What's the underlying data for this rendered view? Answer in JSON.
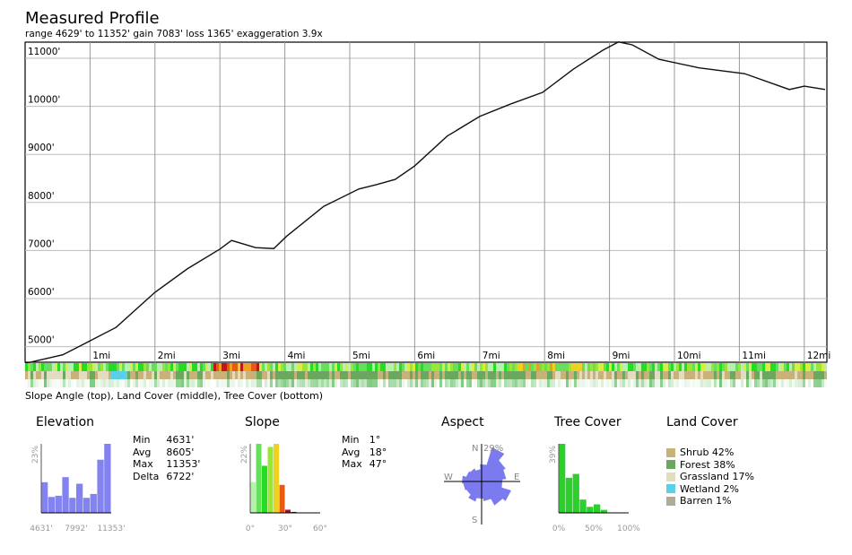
{
  "title": "Measured Profile",
  "subtitle": "range 4629' to 11352'  gain 7083'  loss 1365'  exaggeration 3.9x",
  "strip_caption": "Slope Angle (top), Land Cover (middle), Tree Cover (bottom)",
  "chart_data": [
    {
      "type": "line",
      "name": "elevation-profile",
      "ylim": [
        4629,
        11352
      ],
      "xlim": [
        0,
        12.35
      ],
      "y_ticks": [
        "5000'",
        "6000'",
        "7000'",
        "8000'",
        "9000'",
        "10000'",
        "11000'"
      ],
      "x_ticks": [
        "1mi",
        "2mi",
        "3mi",
        "4mi",
        "5mi",
        "6mi",
        "7mi",
        "8mi",
        "9mi",
        "10mi",
        "11mi",
        "12mi"
      ],
      "grid": true,
      "x": [
        0,
        0.58,
        1.0,
        1.4,
        2.0,
        2.5,
        3.0,
        3.18,
        3.55,
        3.83,
        4.03,
        4.6,
        5.14,
        5.41,
        5.7,
        6.0,
        6.5,
        7.0,
        7.48,
        7.97,
        8.45,
        8.9,
        9.14,
        9.35,
        9.76,
        10.38,
        11.08,
        11.77,
        12.0,
        12.32
      ],
      "y": [
        4650,
        4830,
        5120,
        5400,
        6130,
        6620,
        7030,
        7210,
        7060,
        7040,
        7300,
        7920,
        8280,
        8370,
        8480,
        8760,
        9380,
        9790,
        10050,
        10290,
        10780,
        11170,
        11340,
        11280,
        10980,
        10800,
        10680,
        10350,
        10420,
        10350
      ]
    },
    {
      "type": "bar",
      "title": "Elevation",
      "max_label": "23%",
      "ymax": 23,
      "tick_labels": [
        "4631'",
        "7992'",
        "11353'"
      ],
      "values": [
        10.2,
        5.3,
        5.7,
        11.9,
        5,
        9.7,
        5,
        6.3,
        17.7,
        23
      ],
      "color": "#7b7bef",
      "stats": [
        [
          "Min",
          "4631'"
        ],
        [
          "Avg",
          "8605'"
        ],
        [
          "Max",
          "11353'"
        ],
        [
          "Delta",
          "6722'"
        ]
      ]
    },
    {
      "type": "bar",
      "title": "Slope",
      "max_label": "22%",
      "ymax": 22,
      "tick_labels": [
        "0°",
        "30°",
        "60°"
      ],
      "values": [
        9.8,
        22,
        15,
        21,
        22,
        8.9,
        1,
        0.3,
        0,
        0,
        0,
        0
      ],
      "colors": [
        "#b8f0b0",
        "#66e05a",
        "#22dd22",
        "#99e633",
        "#f0d020",
        "#e85a10",
        "#a01020",
        "#401020",
        "#000",
        "#000",
        "#000",
        "#000"
      ],
      "stats": [
        [
          "Min",
          "1°"
        ],
        [
          "Avg",
          "18°"
        ],
        [
          "Max",
          "47°"
        ]
      ]
    },
    {
      "type": "rose",
      "title": "Aspect",
      "max_label": "29%",
      "directions": [
        "N",
        "E",
        "S",
        "W"
      ],
      "color": "#7b7bef",
      "values": [
        14,
        29,
        22,
        20,
        17,
        25,
        22,
        16,
        14,
        17,
        14,
        15,
        16,
        13,
        12,
        10
      ]
    },
    {
      "type": "bar",
      "title": "Tree Cover",
      "max_label": "39%",
      "ymax": 39,
      "tick_labels": [
        "0%",
        "50%",
        "100%"
      ],
      "values": [
        39,
        19.8,
        22,
        7.5,
        3.4,
        4.8,
        1.7,
        0,
        0,
        0
      ],
      "color": "#22cc22"
    },
    {
      "type": "legend",
      "title": "Land Cover",
      "items": [
        {
          "label": "Shrub 42%",
          "color": "#c8b27a"
        },
        {
          "label": "Forest 38%",
          "color": "#6aa860"
        },
        {
          "label": "Grassland 17%",
          "color": "#e2dcc0"
        },
        {
          "label": "Wetland 2%",
          "color": "#5ad0e8"
        },
        {
          "label": "Barren 1%",
          "color": "#b0aa9a"
        }
      ]
    }
  ]
}
